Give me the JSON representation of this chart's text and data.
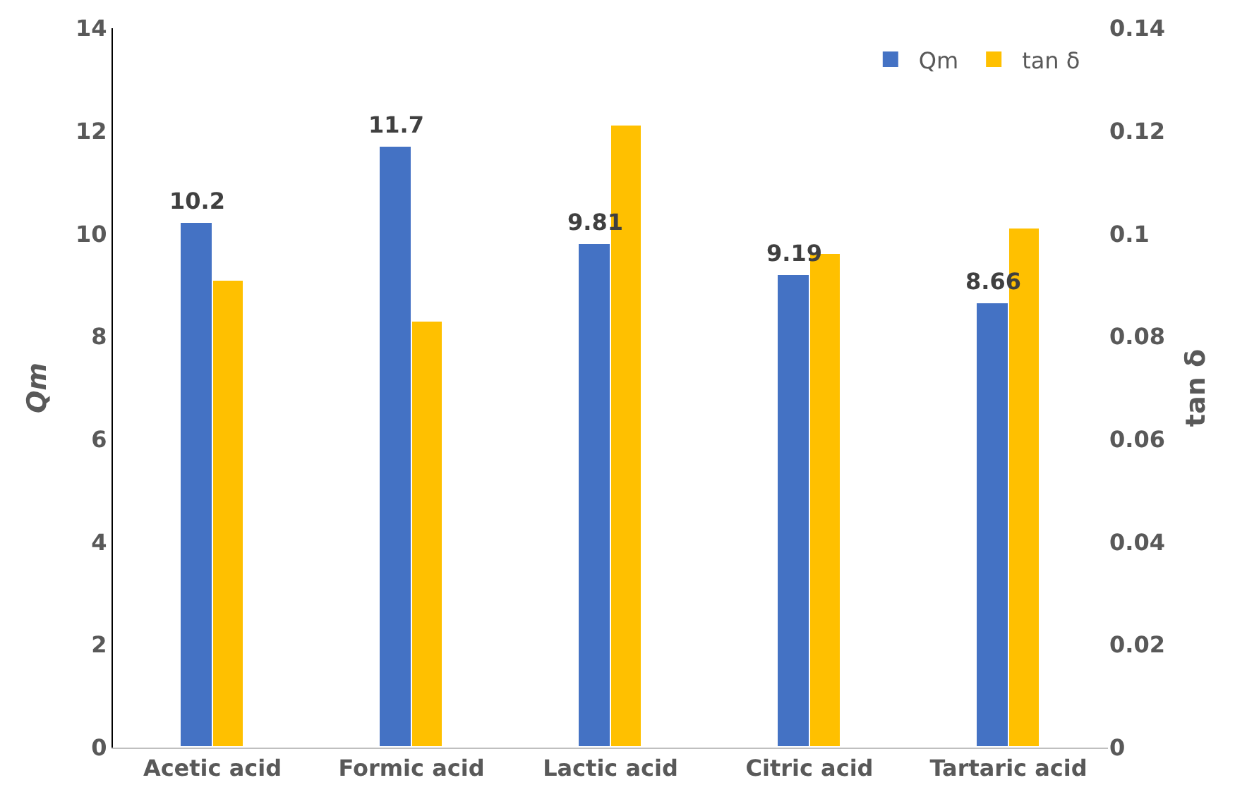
{
  "chart_data": {
    "type": "bar",
    "categories": [
      "Acetic acid",
      "Formic acid",
      "Lactic acid",
      "Citric acid",
      "Tartaric acid"
    ],
    "ylabel": "Qm",
    "y2label": "tan δ",
    "series": [
      {
        "name": "Qm",
        "color": "#4472c4",
        "values": [
          10.2,
          11.7,
          9.81,
          9.19,
          8.66
        ],
        "value_labels": [
          "10.2",
          "11.7",
          "9.81",
          "9.19",
          "8.66"
        ]
      },
      {
        "name": "tan δ",
        "color": "#ffc000",
        "values": [
          0.091,
          0.083,
          0.121,
          0.096,
          0.101
        ],
        "axis": "y2"
      }
    ],
    "ylim": [
      0,
      14
    ],
    "yticks": [
      0,
      2,
      4,
      6,
      8,
      10,
      12,
      14
    ],
    "y2lim": [
      0,
      0.14
    ],
    "y2ticks": [
      0,
      0.02,
      0.04,
      0.06,
      0.08,
      0.1,
      0.12,
      0.14
    ],
    "legend": "top right"
  }
}
